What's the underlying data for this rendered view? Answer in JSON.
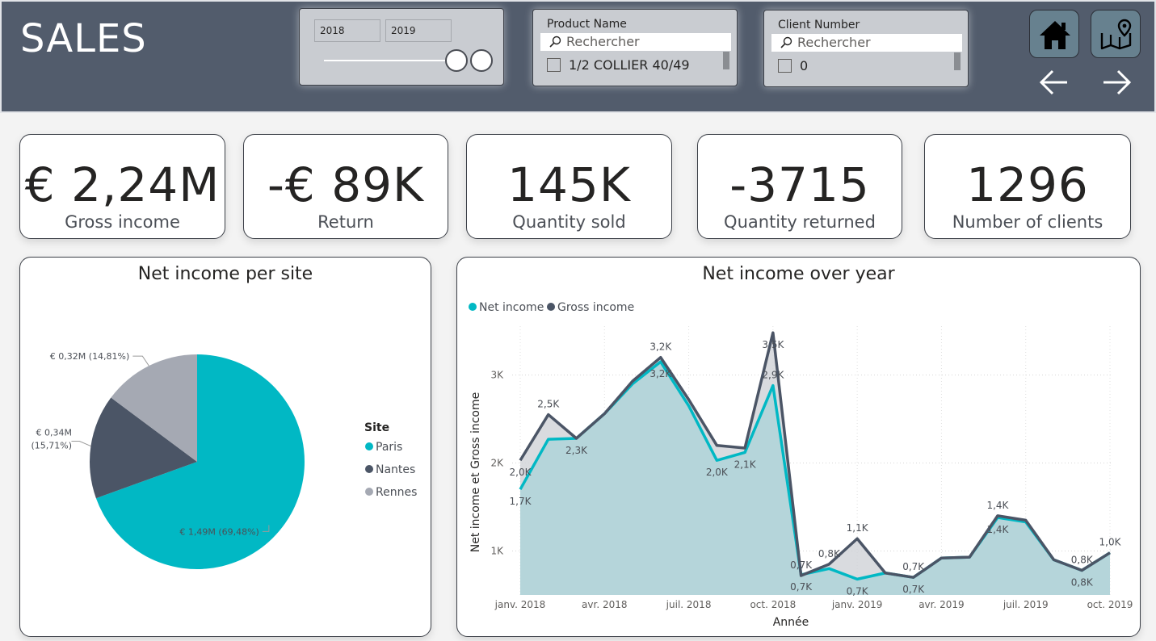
{
  "header": {
    "title": "SALES",
    "year_slicer": {
      "from": "2018",
      "to": "2019"
    },
    "product_slicer": {
      "label": "Product Name",
      "search_placeholder": "Rechercher",
      "first_item": "1/2 COLLIER 40/49"
    },
    "client_slicer": {
      "label": "Client Number",
      "search_placeholder": "Rechercher",
      "first_item": "0"
    },
    "nav_icons": [
      "home-icon",
      "map-icon",
      "arrow-left-icon",
      "arrow-right-icon"
    ]
  },
  "kpis": [
    {
      "value": "€ 2,24M",
      "label": "Gross income"
    },
    {
      "value": "-€ 89K",
      "label": "Return"
    },
    {
      "value": "145K",
      "label": "Quantity sold"
    },
    {
      "value": "-3715",
      "label": "Quantity returned"
    },
    {
      "value": "1296",
      "label": "Number of clients"
    }
  ],
  "colors": {
    "header": "#525c6c",
    "paris": "#01b8c4",
    "nantes": "#4b5566",
    "rennes": "#a5a9b3",
    "area": "#b5d5da",
    "nav_button": "#67818f"
  },
  "chart_data": [
    {
      "type": "pie",
      "title": "Net income per site",
      "legend_title": "Site",
      "legend_position": "right",
      "series": [
        {
          "name": "Paris",
          "value": 1.49,
          "percent": 69.48,
          "label": "€ 1,49M (69,48%)"
        },
        {
          "name": "Nantes",
          "value": 0.34,
          "percent": 15.71,
          "label": "€ 0,34M (15,71%)"
        },
        {
          "name": "Rennes",
          "value": 0.32,
          "percent": 14.81,
          "label": "€ 0,32M (14,81%)"
        }
      ]
    },
    {
      "type": "line",
      "title": "Net income over year",
      "xlabel": "Année",
      "ylabel": "Net income et Gross income",
      "x_ticks": [
        "janv. 2018",
        "avr. 2018",
        "juil. 2018",
        "oct. 2018",
        "janv. 2019",
        "avr. 2019",
        "juil. 2019",
        "oct. 2019"
      ],
      "y_ticks": [
        "1K",
        "2K",
        "3K"
      ],
      "ylim": [
        500,
        3500
      ],
      "legend_position": "top-left",
      "grid": true,
      "x": [
        "2018-01",
        "2018-02",
        "2018-03",
        "2018-04",
        "2018-05",
        "2018-06",
        "2018-07",
        "2018-08",
        "2018-09",
        "2018-10",
        "2018-11",
        "2018-12",
        "2019-01",
        "2019-02",
        "2019-03",
        "2019-04",
        "2019-05",
        "2019-06",
        "2019-07",
        "2019-08",
        "2019-09",
        "2019-10"
      ],
      "series": [
        {
          "name": "Net income",
          "values": [
            1700,
            2270,
            2280,
            2560,
            2900,
            3150,
            2650,
            2030,
            2120,
            2880,
            730,
            800,
            680,
            750,
            700,
            920,
            930,
            1380,
            1330,
            900,
            780,
            980
          ]
        },
        {
          "name": "Gross income",
          "values": [
            2030,
            2550,
            2280,
            2560,
            2930,
            3200,
            2720,
            2200,
            2170,
            3480,
            720,
            850,
            1140,
            750,
            700,
            920,
            930,
            1400,
            1350,
            900,
            780,
            980
          ]
        }
      ],
      "data_labels": [
        {
          "text": "2,0K",
          "series": "Gross income",
          "i": 0,
          "pos": "below"
        },
        {
          "text": "1,7K",
          "series": "Net income",
          "i": 0,
          "pos": "below"
        },
        {
          "text": "2,5K",
          "series": "Gross income",
          "i": 1,
          "pos": "above"
        },
        {
          "text": "2,3K",
          "series": "Net income",
          "i": 2,
          "pos": "below"
        },
        {
          "text": "3,2K",
          "series": "Gross income",
          "i": 5,
          "pos": "above"
        },
        {
          "text": "3,2K",
          "series": "Net income",
          "i": 5,
          "pos": "below"
        },
        {
          "text": "2,0K",
          "series": "Net income",
          "i": 7,
          "pos": "below"
        },
        {
          "text": "2,1K",
          "series": "Net income",
          "i": 8,
          "pos": "below"
        },
        {
          "text": "3,5K",
          "series": "Gross income",
          "i": 9,
          "pos": "below"
        },
        {
          "text": "2,9K",
          "series": "Net income",
          "i": 9,
          "pos": "above"
        },
        {
          "text": "0,7K",
          "series": "Gross income",
          "i": 10,
          "pos": "above"
        },
        {
          "text": "0,7K",
          "series": "Net income",
          "i": 10,
          "pos": "below"
        },
        {
          "text": "0,8K",
          "series": "Gross income",
          "i": 11,
          "pos": "above"
        },
        {
          "text": "1,1K",
          "series": "Gross income",
          "i": 12,
          "pos": "above"
        },
        {
          "text": "0,7K",
          "series": "Net income",
          "i": 12,
          "pos": "below"
        },
        {
          "text": "0,7K",
          "series": "Net income",
          "i": 14,
          "pos": "above"
        },
        {
          "text": "0,7K",
          "series": "Gross income",
          "i": 14,
          "pos": "below"
        },
        {
          "text": "1,4K",
          "series": "Gross income",
          "i": 17,
          "pos": "above"
        },
        {
          "text": "1,4K",
          "series": "Net income",
          "i": 17,
          "pos": "below"
        },
        {
          "text": "0,8K",
          "series": "Gross income",
          "i": 20,
          "pos": "above"
        },
        {
          "text": "0,8K",
          "series": "Net income",
          "i": 20,
          "pos": "below"
        },
        {
          "text": "1,0K",
          "series": "Gross income",
          "i": 21,
          "pos": "above"
        }
      ]
    }
  ]
}
